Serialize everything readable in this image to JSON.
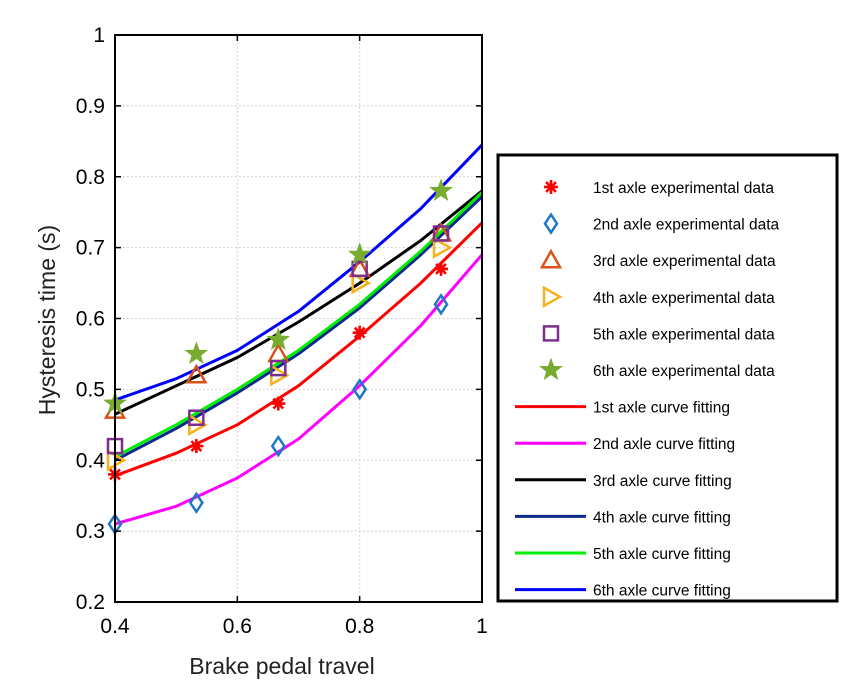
{
  "chart_data": {
    "type": "line",
    "xlabel": "Brake pedal travel",
    "ylabel": "Hysteresis time (s)",
    "xlim": [
      0.4,
      1.0
    ],
    "ylim": [
      0.2,
      1.0
    ],
    "x_ticks": [
      "0.4",
      "0.6",
      "0.8",
      "1"
    ],
    "y_ticks": [
      "0.2",
      "0.3",
      "0.4",
      "0.5",
      "0.6",
      "0.7",
      "0.8",
      "0.9",
      "1"
    ],
    "grid": true,
    "legend_position": "right, outside plot",
    "experimental_series": [
      {
        "name": "1st axle experimental data",
        "marker": "asterisk",
        "color": "#ff0000",
        "x": [
          0.4,
          0.533,
          0.667,
          0.8,
          0.933
        ],
        "y": [
          0.38,
          0.42,
          0.48,
          0.58,
          0.67
        ]
      },
      {
        "name": "2nd axle experimental data",
        "marker": "diamond",
        "color": "#1e78c8",
        "x": [
          0.4,
          0.533,
          0.667,
          0.8,
          0.933
        ],
        "y": [
          0.31,
          0.34,
          0.42,
          0.5,
          0.62
        ]
      },
      {
        "name": "3rd axle experimental data",
        "marker": "triangle-up",
        "color": "#d95319",
        "x": [
          0.4,
          0.533,
          0.667,
          0.8,
          0.933
        ],
        "y": [
          0.47,
          0.52,
          0.55,
          0.67,
          0.72
        ]
      },
      {
        "name": "4th axle experimental data",
        "marker": "triangle-right",
        "color": "#f5b21a",
        "x": [
          0.4,
          0.533,
          0.667,
          0.8,
          0.933
        ],
        "y": [
          0.4,
          0.45,
          0.52,
          0.65,
          0.7
        ]
      },
      {
        "name": "5th axle experimental data",
        "marker": "square",
        "color": "#7e2f8e",
        "x": [
          0.4,
          0.533,
          0.667,
          0.8,
          0.933
        ],
        "y": [
          0.42,
          0.46,
          0.53,
          0.67,
          0.72
        ]
      },
      {
        "name": "6th axle experimental data",
        "marker": "pentagram",
        "color": "#77ac30",
        "x": [
          0.4,
          0.533,
          0.667,
          0.8,
          0.933
        ],
        "y": [
          0.48,
          0.55,
          0.57,
          0.69,
          0.78
        ]
      }
    ],
    "fit_series": [
      {
        "name": "1st axle curve fitting",
        "color": "#ff0000",
        "x": [
          0.4,
          0.5,
          0.6,
          0.7,
          0.8,
          0.9,
          1.0
        ],
        "y": [
          0.378,
          0.41,
          0.45,
          0.505,
          0.575,
          0.65,
          0.735
        ]
      },
      {
        "name": "2nd axle curve fitting",
        "color": "#ff00ff",
        "x": [
          0.4,
          0.5,
          0.6,
          0.7,
          0.8,
          0.9,
          1.0
        ],
        "y": [
          0.31,
          0.335,
          0.375,
          0.43,
          0.505,
          0.59,
          0.69
        ]
      },
      {
        "name": "3rd axle curve fitting",
        "color": "#000000",
        "x": [
          0.4,
          0.5,
          0.6,
          0.7,
          0.8,
          0.9,
          1.0
        ],
        "y": [
          0.465,
          0.505,
          0.545,
          0.595,
          0.65,
          0.71,
          0.78
        ]
      },
      {
        "name": "4th axle curve fitting",
        "color": "#0b2a8c",
        "x": [
          0.4,
          0.5,
          0.6,
          0.7,
          0.8,
          0.9,
          1.0
        ],
        "y": [
          0.4,
          0.445,
          0.495,
          0.55,
          0.615,
          0.69,
          0.772
        ]
      },
      {
        "name": "5th axle curve fitting",
        "color": "#00ee00",
        "x": [
          0.4,
          0.5,
          0.6,
          0.7,
          0.8,
          0.9,
          1.0
        ],
        "y": [
          0.405,
          0.45,
          0.5,
          0.555,
          0.62,
          0.695,
          0.778
        ]
      },
      {
        "name": "6th axle curve fitting",
        "color": "#0000ff",
        "x": [
          0.4,
          0.5,
          0.6,
          0.7,
          0.8,
          0.9,
          1.0
        ],
        "y": [
          0.485,
          0.515,
          0.555,
          0.61,
          0.68,
          0.755,
          0.845
        ]
      }
    ]
  }
}
